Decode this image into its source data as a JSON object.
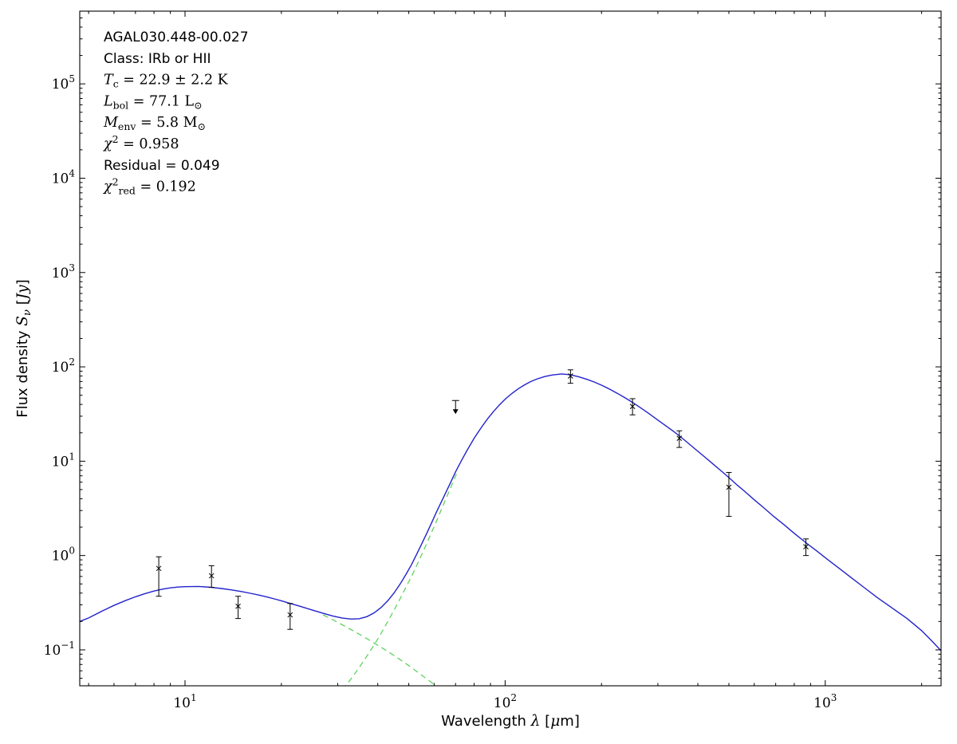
{
  "page": {
    "background": "#ffffff"
  },
  "chart_data": {
    "type": "line",
    "title": "AGAL030.448-00.027",
    "xscale": "log",
    "yscale": "log",
    "xlim": [
      4.69,
      2300
    ],
    "ylim": [
      0.0416,
      590000
    ],
    "grid": false,
    "x_major_ticks": [
      10,
      100,
      1000
    ],
    "y_major_ticks": [
      0.1,
      1,
      10,
      100,
      1000,
      10000,
      100000
    ],
    "xlabel_segments": [
      {
        "text": "Wavelength ",
        "mode": "sans"
      },
      {
        "text": "λ",
        "mode": "italic"
      },
      {
        "text": " [",
        "mode": "sans"
      },
      {
        "text": "μ",
        "mode": "italic"
      },
      {
        "text": "m]",
        "mode": "sans"
      }
    ],
    "ylabel_segments": [
      {
        "text": "Flux density ",
        "mode": "sans"
      },
      {
        "text": "S",
        "mode": "italic"
      },
      {
        "text": "ν",
        "mode": "subi"
      },
      {
        "text": " [",
        "mode": "sans"
      },
      {
        "text": "Jy",
        "mode": "italic"
      },
      {
        "text": "]",
        "mode": "sans"
      }
    ],
    "annotation_lines": [
      {
        "name": "source-name",
        "segments": [
          {
            "text": "AGAL030.448-00.027",
            "mode": "sans"
          }
        ]
      },
      {
        "name": "class",
        "segments": [
          {
            "text": "Class: IRb or HII",
            "mode": "sans"
          }
        ]
      },
      {
        "name": "dust-temperature",
        "segments": [
          {
            "text": "T",
            "mode": "italic"
          },
          {
            "text": "c",
            "mode": "sub"
          },
          {
            "text": " = 22.9 ± 2.2 K",
            "mode": "roman"
          }
        ]
      },
      {
        "name": "bolometric-luminosity",
        "segments": [
          {
            "text": "L",
            "mode": "italic"
          },
          {
            "text": "bol",
            "mode": "sub"
          },
          {
            "text": " = 77.1 ",
            "mode": "roman"
          },
          {
            "text": "L",
            "mode": "roman"
          },
          {
            "text": "⊙",
            "mode": "sub"
          }
        ]
      },
      {
        "name": "envelope-mass",
        "segments": [
          {
            "text": "M",
            "mode": "italic"
          },
          {
            "text": "env",
            "mode": "sub"
          },
          {
            "text": " = 5.8 ",
            "mode": "roman"
          },
          {
            "text": "M",
            "mode": "roman"
          },
          {
            "text": "⊙",
            "mode": "sub"
          }
        ]
      },
      {
        "name": "chi-squared",
        "segments": [
          {
            "text": "χ",
            "mode": "italic"
          },
          {
            "text": "2",
            "mode": "sup"
          },
          {
            "text": " = 0.958",
            "mode": "roman"
          }
        ]
      },
      {
        "name": "residual",
        "segments": [
          {
            "text": "Residual = 0.049",
            "mode": "sans"
          }
        ]
      },
      {
        "name": "chi-squared-reduced",
        "segments": [
          {
            "text": "χ",
            "mode": "italic"
          },
          {
            "text": "2",
            "mode": "sup"
          },
          {
            "text": "red",
            "mode": "sub"
          },
          {
            "text": " = 0.192",
            "mode": "roman"
          }
        ]
      }
    ],
    "series": [
      {
        "name": "model-total-curve",
        "kind": "line",
        "color": "#2222cc",
        "width": 1.4,
        "dash": null,
        "points": [
          [
            4.69,
            0.2
          ],
          [
            5,
            0.218
          ],
          [
            5.5,
            0.257
          ],
          [
            6,
            0.296
          ],
          [
            6.5,
            0.332
          ],
          [
            7,
            0.365
          ],
          [
            7.5,
            0.395
          ],
          [
            8,
            0.42
          ],
          [
            8.5,
            0.44
          ],
          [
            9,
            0.454
          ],
          [
            9.5,
            0.463
          ],
          [
            10,
            0.468
          ],
          [
            11,
            0.47
          ],
          [
            12,
            0.461
          ],
          [
            13,
            0.447
          ],
          [
            14,
            0.432
          ],
          [
            15,
            0.415
          ],
          [
            16,
            0.398
          ],
          [
            17,
            0.381
          ],
          [
            18,
            0.364
          ],
          [
            19,
            0.347
          ],
          [
            20,
            0.331
          ],
          [
            21.3,
            0.311
          ],
          [
            23,
            0.288
          ],
          [
            25,
            0.264
          ],
          [
            27,
            0.244
          ],
          [
            29,
            0.228
          ],
          [
            31,
            0.217
          ],
          [
            33,
            0.212
          ],
          [
            35,
            0.214
          ],
          [
            37,
            0.225
          ],
          [
            39,
            0.247
          ],
          [
            41,
            0.282
          ],
          [
            43,
            0.332
          ],
          [
            45,
            0.402
          ],
          [
            47,
            0.5
          ],
          [
            49,
            0.63
          ],
          [
            51,
            0.8
          ],
          [
            53,
            1.04
          ],
          [
            55,
            1.35
          ],
          [
            57,
            1.74
          ],
          [
            59,
            2.24
          ],
          [
            61,
            2.88
          ],
          [
            64,
            4.05
          ],
          [
            67,
            5.6
          ],
          [
            70,
            7.7
          ],
          [
            73,
            10.1
          ],
          [
            76,
            13
          ],
          [
            80,
            17.5
          ],
          [
            84,
            22.4
          ],
          [
            88,
            27.9
          ],
          [
            92,
            33.7
          ],
          [
            96,
            39.6
          ],
          [
            100,
            45.4
          ],
          [
            105,
            52.3
          ],
          [
            110,
            58.7
          ],
          [
            115,
            64.5
          ],
          [
            120,
            69.7
          ],
          [
            126,
            74.6
          ],
          [
            133,
            78.9
          ],
          [
            140,
            82
          ],
          [
            150,
            84.2
          ],
          [
            160,
            82.5
          ],
          [
            170,
            78.4
          ],
          [
            180,
            73.7
          ],
          [
            190,
            69
          ],
          [
            200,
            64
          ],
          [
            212,
            58
          ],
          [
            224,
            52.5
          ],
          [
            237,
            47
          ],
          [
            250,
            42
          ],
          [
            265,
            36.8
          ],
          [
            280,
            32.3
          ],
          [
            300,
            27.3
          ],
          [
            320,
            23.3
          ],
          [
            335,
            20.8
          ],
          [
            350,
            18.6
          ],
          [
            370,
            15.9
          ],
          [
            395,
            13.2
          ],
          [
            420,
            11.1
          ],
          [
            450,
            9.1
          ],
          [
            475,
            7.8
          ],
          [
            500,
            6.7
          ],
          [
            530,
            5.6
          ],
          [
            560,
            4.8
          ],
          [
            600,
            3.9
          ],
          [
            640,
            3.25
          ],
          [
            690,
            2.6
          ],
          [
            740,
            2.15
          ],
          [
            800,
            1.72
          ],
          [
            870,
            1.37
          ],
          [
            940,
            1.12
          ],
          [
            1020,
            0.9
          ],
          [
            1100,
            0.74
          ],
          [
            1200,
            0.59
          ],
          [
            1320,
            0.46
          ],
          [
            1450,
            0.36
          ],
          [
            1600,
            0.285
          ],
          [
            1800,
            0.215
          ],
          [
            2000,
            0.16
          ],
          [
            2150,
            0.125
          ],
          [
            2300,
            0.098
          ]
        ]
      },
      {
        "name": "warm-component-curve",
        "kind": "line",
        "color": "#5fd35f",
        "width": 1.3,
        "dash": [
          7,
          5
        ],
        "points": [
          [
            27,
            0.235
          ],
          [
            30,
            0.196
          ],
          [
            33,
            0.164
          ],
          [
            36,
            0.139
          ],
          [
            39,
            0.118
          ],
          [
            42,
            0.101
          ],
          [
            45,
            0.087
          ],
          [
            48,
            0.075
          ],
          [
            51,
            0.065
          ],
          [
            54,
            0.056
          ],
          [
            57,
            0.049
          ],
          [
            60,
            0.043
          ],
          [
            63,
            0.037
          ],
          [
            65,
            0.034
          ]
        ]
      },
      {
        "name": "cold-component-curve",
        "kind": "line",
        "color": "#5fd35f",
        "width": 1.3,
        "dash": [
          7,
          5
        ],
        "points": [
          [
            31,
            0.038
          ],
          [
            33,
            0.049
          ],
          [
            35,
            0.065
          ],
          [
            37,
            0.086
          ],
          [
            39,
            0.113
          ],
          [
            41,
            0.15
          ],
          [
            43,
            0.2
          ],
          [
            45,
            0.265
          ],
          [
            47,
            0.35
          ],
          [
            49,
            0.46
          ],
          [
            51,
            0.6
          ],
          [
            53,
            0.79
          ],
          [
            55,
            1.04
          ],
          [
            57,
            1.36
          ],
          [
            59,
            1.78
          ],
          [
            61,
            2.3
          ],
          [
            63,
            3.0
          ],
          [
            65,
            3.85
          ],
          [
            67,
            4.9
          ],
          [
            69,
            6.2
          ],
          [
            71,
            7.8
          ]
        ]
      },
      {
        "name": "photometry",
        "kind": "errorbar",
        "color": "#000000",
        "marker": "x",
        "points": [
          {
            "x": 8.28,
            "y": 0.73,
            "ylo": 0.37,
            "yhi": 0.97
          },
          {
            "x": 12.1,
            "y": 0.61,
            "ylo": 0.46,
            "yhi": 0.78
          },
          {
            "x": 14.65,
            "y": 0.29,
            "ylo": 0.215,
            "yhi": 0.37
          },
          {
            "x": 21.3,
            "y": 0.235,
            "ylo": 0.165,
            "yhi": 0.31
          },
          {
            "x": 160,
            "y": 80,
            "ylo": 67,
            "yhi": 93
          },
          {
            "x": 250,
            "y": 38,
            "ylo": 31,
            "yhi": 46
          },
          {
            "x": 350,
            "y": 17.5,
            "ylo": 14,
            "yhi": 21
          },
          {
            "x": 500,
            "y": 5.3,
            "ylo": 2.6,
            "yhi": 7.6
          },
          {
            "x": 870,
            "y": 1.24,
            "ylo": 1.0,
            "yhi": 1.5
          }
        ]
      },
      {
        "name": "upper-limit-70um",
        "kind": "upperlimit",
        "color": "#000000",
        "x": 70,
        "y": 44
      }
    ]
  }
}
